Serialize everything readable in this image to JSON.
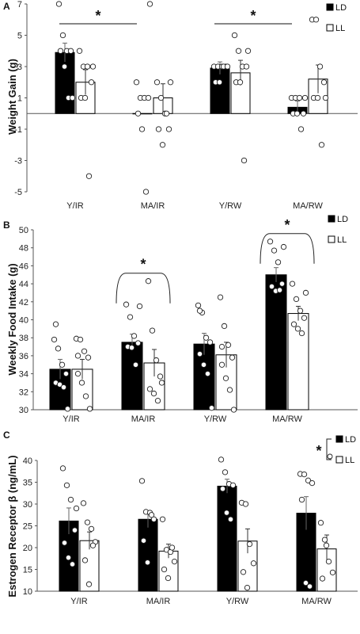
{
  "chart_data": [
    {
      "panel": "A",
      "type": "bar",
      "ylabel": "Weight Gain (g)",
      "ylim": [
        -5,
        7
      ],
      "yticks": [
        -5,
        -3,
        -1,
        1,
        3,
        5,
        7
      ],
      "categories": [
        "Y/IR",
        "MA/IR",
        "Y/RW",
        "MA/RW"
      ],
      "series": [
        {
          "name": "LD",
          "color": "#000000",
          "values": [
            3.9,
            0.0,
            2.9,
            0.4
          ],
          "errors": [
            0.6,
            0.0,
            0.4,
            0.4
          ],
          "points": [
            [
              7,
              5,
              4,
              4,
              4,
              3,
              1,
              1
            ],
            [
              2,
              1,
              1,
              1,
              0,
              -1,
              -5,
              7
            ],
            [
              3,
              3,
              3,
              3,
              2,
              2,
              3,
              3
            ],
            [
              1,
              1,
              1,
              0,
              0,
              0,
              -1,
              1
            ]
          ]
        },
        {
          "name": "LL",
          "color": "#ffffff",
          "values": [
            2.0,
            1.0,
            2.6,
            2.2
          ],
          "errors": [
            0.8,
            0.9,
            0.8,
            0.9
          ],
          "points": [
            [
              4,
              3,
              3,
              2,
              1,
              1,
              -4,
              3
            ],
            [
              2,
              1,
              0,
              -1,
              -1,
              -2,
              0,
              2
            ],
            [
              5,
              4,
              3,
              3,
              2,
              2,
              -3,
              4
            ],
            [
              6,
              6,
              3,
              2,
              1,
              1,
              -2,
              1
            ]
          ]
        }
      ],
      "legend": [
        "LD",
        "LL"
      ],
      "legend_position": "top-right",
      "significance": [
        {
          "label": "*",
          "from": "Y/IR",
          "to": "MA/IR"
        },
        {
          "label": "*",
          "from": "Y/RW",
          "to": "MA/RW"
        }
      ]
    },
    {
      "panel": "B",
      "type": "bar",
      "ylabel": "Weekly Food Intake (g)",
      "ylim": [
        30,
        50
      ],
      "yticks": [
        30,
        32,
        34,
        36,
        38,
        40,
        42,
        44,
        46,
        48,
        50
      ],
      "categories": [
        "Y/IR",
        "MA/IR",
        "Y/RW",
        "MA/RW"
      ],
      "series": [
        {
          "name": "LD",
          "color": "#000000",
          "values": [
            34.5,
            37.5,
            37.3,
            45.0
          ],
          "errors": [
            1.1,
            0.9,
            1.2,
            0.8
          ],
          "points": [
            [
              37.8,
              36.8,
              35.0,
              34.0,
              33.0,
              32.8,
              32.5,
              30.1,
              39.5
            ],
            [
              41.7,
              40.3,
              38.2,
              37.4,
              37.0,
              36.9,
              35.0,
              41.5
            ],
            [
              41.6,
              40.8,
              38.0,
              37.5,
              36.2,
              35.0,
              34.0,
              30.2,
              41.0
            ],
            [
              48.7,
              47.7,
              46.4,
              44.0,
              43.7,
              43.2,
              43.3,
              48.1
            ]
          ]
        },
        {
          "name": "LL",
          "color": "#ffffff",
          "values": [
            34.5,
            35.2,
            36.1,
            40.7
          ],
          "errors": [
            1.1,
            1.5,
            1.4,
            0.8
          ],
          "points": [
            [
              37.9,
              37.8,
              36.5,
              35.8,
              34.0,
              33.0,
              31.5,
              30.1,
              36.0
            ],
            [
              44.3,
              38.8,
              35.5,
              33.7,
              32.3,
              31.8,
              31.0,
              33.0
            ],
            [
              42.5,
              39.3,
              37.2,
              35.8,
              35.0,
              33.5,
              32.2,
              30.0,
              37.0
            ],
            [
              44.0,
              42.3,
              41.0,
              40.2,
              39.5,
              39.0,
              38.5,
              43.0
            ]
          ]
        }
      ],
      "legend": [
        "LD",
        "LL"
      ],
      "legend_position": "top-right",
      "significance": [
        {
          "label": "*",
          "group": "MA/IR"
        },
        {
          "label": "*",
          "group": "MA/RW"
        }
      ]
    },
    {
      "panel": "C",
      "type": "bar",
      "ylabel": "Estrogen Receptor β (ng/mL)",
      "ylim": [
        10,
        40
      ],
      "yticks": [
        10,
        15,
        20,
        25,
        30,
        35,
        40
      ],
      "categories": [
        "Y/IR",
        "MA/IR",
        "Y/RW",
        "MA/RW"
      ],
      "series": [
        {
          "name": "LD",
          "color": "#000000",
          "values": [
            26.1,
            26.5,
            34.1,
            27.9
          ],
          "errors": [
            3.0,
            1.9,
            1.6,
            3.8
          ],
          "points": [
            [
              38.2,
              34.3,
              31.0,
              24.0,
              21.1,
              17.7,
              16.2,
              29.0
            ],
            [
              35.3,
              28.2,
              28.0,
              26.5,
              21.6,
              16.6,
              27.5
            ],
            [
              40.2,
              37.3,
              34.6,
              34.3,
              33.5,
              28.0,
              26.5
            ],
            [
              36.9,
              36.8,
              35.4,
              34.8,
              31.0,
              11.9,
              11.1
            ]
          ]
        },
        {
          "name": "LL",
          "color": "#ffffff",
          "values": [
            21.6,
            19.2,
            21.5,
            19.7
          ],
          "errors": [
            2.0,
            1.6,
            2.8,
            3.2
          ],
          "points": [
            [
              30.2,
              25.8,
              24.3,
              21.3,
              17.1,
              11.6,
              20.5
            ],
            [
              26.5,
              19.5,
              19.0,
              16.8,
              15.0,
              13.0,
              20.0
            ],
            [
              30.3,
              30.0,
              20.8,
              16.4,
              14.4,
              10.8
            ],
            [
              25.7,
              21.8,
              16.8,
              14.3,
              12.9,
              20.5
            ]
          ]
        }
      ],
      "legend": [
        "LD",
        "LL"
      ],
      "legend_position": "top-right",
      "significance": [
        {
          "label": "*",
          "between": [
            "LD",
            "LL"
          ]
        }
      ]
    }
  ]
}
